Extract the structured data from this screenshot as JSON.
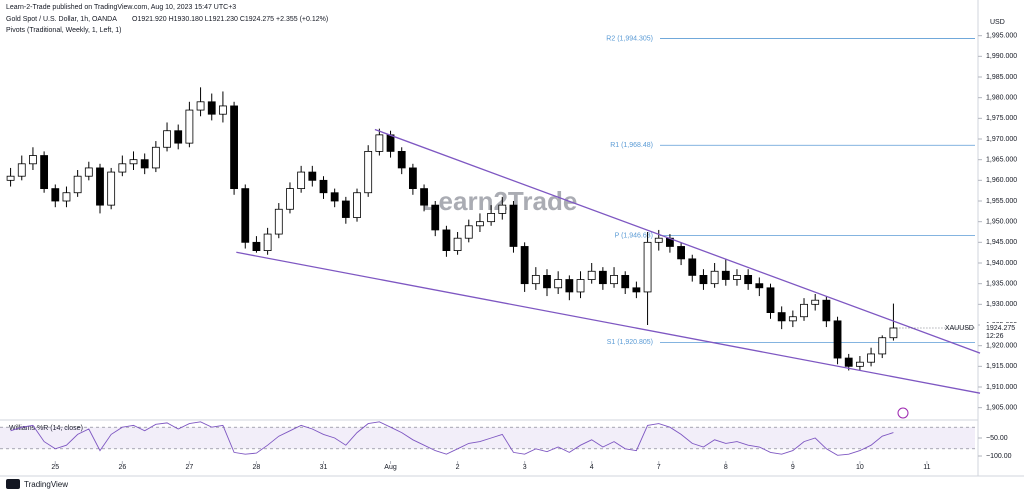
{
  "chart_data": {
    "type": "candlestick",
    "published": "Learn-2-Trade published on TradingView.com, Aug 10, 2023 15:47 UTC+3",
    "title": "Gold Spot / U.S. Dollar, 1h, OANDA",
    "ohlc_summary": "O1921.920 H1930.180 L1921.230 C1924.275 +2.355 (+0.12%)",
    "indicator_title": "Pivots (Traditional, Weekly, 1, Left, 1)",
    "watermark": "Learn2Trade",
    "currency": "USD",
    "symbol": "XAUUSD",
    "countdown": "12:26",
    "footer": "TradingView",
    "up_color": "#ffffff",
    "down_color": "#000000",
    "open": [
      1960,
      1961,
      1964,
      1966,
      1958,
      1955,
      1957,
      1961,
      1963,
      1954,
      1962,
      1964,
      1965,
      1963,
      1968,
      1972,
      1969,
      1977,
      1979,
      1976,
      1978,
      1958,
      1945,
      1943,
      1947,
      1953,
      1958,
      1962,
      1960,
      1957,
      1955,
      1951,
      1957,
      1967,
      1971,
      1967,
      1963,
      1958,
      1954,
      1948,
      1943,
      1946,
      1949,
      1950,
      1952,
      1954,
      1944,
      1935,
      1937,
      1934,
      1936,
      1933,
      1936,
      1938,
      1935,
      1937,
      1934,
      1933,
      1945,
      1946,
      1944,
      1941,
      1937,
      1935,
      1938,
      1936,
      1937,
      1935,
      1934,
      1928,
      1926,
      1927,
      1930,
      1931,
      1926,
      1917,
      1915,
      1916,
      1918,
      1921.92
    ],
    "high": [
      1963,
      1966,
      1968,
      1967,
      1959,
      1958.5,
      1962.5,
      1964.5,
      1964,
      1963,
      1966,
      1967,
      1966.5,
      1969.5,
      1974,
      1973.5,
      1979,
      1982.5,
      1981,
      1981.5,
      1979,
      1959,
      1946.5,
      1948.5,
      1954.5,
      1959.5,
      1963.5,
      1963.5,
      1961,
      1958,
      1956,
      1958,
      1968.5,
      1972.5,
      1972,
      1968,
      1964,
      1959,
      1955,
      1949,
      1947.5,
      1950.5,
      1952,
      1954,
      1956,
      1955,
      1945,
      1939,
      1938.5,
      1938,
      1937,
      1938,
      1940,
      1939,
      1939,
      1938,
      1935.5,
      1947.5,
      1948,
      1947,
      1945,
      1942,
      1938.5,
      1940,
      1941,
      1938.5,
      1938.5,
      1936.5,
      1935,
      1929.5,
      1928.5,
      1931.5,
      1932.5,
      1932,
      1927,
      1918,
      1917.5,
      1919.5,
      1922.5,
      1930.18
    ],
    "low": [
      1958.5,
      1960,
      1962.5,
      1957,
      1953.5,
      1953.5,
      1956,
      1960,
      1952,
      1953,
      1961,
      1962.5,
      1961.5,
      1962,
      1967,
      1967.5,
      1968,
      1975.5,
      1974.5,
      1974,
      1956.5,
      1943.5,
      1942.5,
      1942,
      1946,
      1952,
      1957,
      1958.5,
      1955.5,
      1953.5,
      1949.5,
      1950,
      1956,
      1966,
      1965.5,
      1961.5,
      1956.5,
      1952.5,
      1946.5,
      1941.5,
      1942,
      1945,
      1947.5,
      1949,
      1950.5,
      1942.5,
      1933,
      1933.5,
      1932,
      1932.5,
      1931,
      1931.5,
      1935,
      1933.5,
      1934,
      1932.5,
      1931.5,
      1925,
      1943,
      1942.5,
      1939.5,
      1935.5,
      1933.5,
      1934,
      1934.5,
      1934.5,
      1933.5,
      1932,
      1926.5,
      1924,
      1924.5,
      1926,
      1928.5,
      1924.5,
      1915.5,
      1914,
      1914,
      1915,
      1917,
      1921.23
    ],
    "close": [
      1961,
      1964,
      1966,
      1958,
      1955,
      1957,
      1961,
      1963,
      1954,
      1962,
      1964,
      1965,
      1963,
      1968,
      1972,
      1969,
      1977,
      1979,
      1976,
      1978,
      1958,
      1945,
      1943,
      1947,
      1953,
      1958,
      1962,
      1960,
      1957,
      1955,
      1951,
      1957,
      1967,
      1971,
      1967,
      1963,
      1958,
      1954,
      1948,
      1943,
      1946,
      1949,
      1950,
      1952,
      1954,
      1944,
      1935,
      1937,
      1934,
      1936,
      1933,
      1936,
      1938,
      1935,
      1937,
      1934,
      1933,
      1945,
      1946,
      1944,
      1941,
      1937,
      1935,
      1938,
      1936,
      1937,
      1935,
      1934,
      1928,
      1926,
      1927,
      1930,
      1931,
      1926,
      1917,
      1915,
      1916,
      1918,
      1921.92,
      1924.275
    ],
    "xlim": [
      -0.5,
      86.3
    ],
    "xticks": [
      {
        "value": 4,
        "label": "25"
      },
      {
        "value": 10,
        "label": "26"
      },
      {
        "value": 16,
        "label": "27"
      },
      {
        "value": 22,
        "label": "28"
      },
      {
        "value": 28,
        "label": "31"
      },
      {
        "value": 34,
        "label": "Aug"
      },
      {
        "value": 40,
        "label": "2"
      },
      {
        "value": 46,
        "label": "3"
      },
      {
        "value": 52,
        "label": "4"
      },
      {
        "value": 58,
        "label": "7"
      },
      {
        "value": 64,
        "label": "8"
      },
      {
        "value": 70,
        "label": "9"
      },
      {
        "value": 76,
        "label": "10"
      },
      {
        "value": 82,
        "label": "11"
      }
    ],
    "ylim": [
      1902.5,
      2000
    ],
    "yticks": [
      {
        "value": 1905,
        "label": "1,905.000"
      },
      {
        "value": 1910,
        "label": "1,910.000"
      },
      {
        "value": 1915,
        "label": "1,915.000"
      },
      {
        "value": 1920,
        "label": "1,920.000"
      },
      {
        "value": 1925,
        "label": "1,925.000"
      },
      {
        "value": 1930,
        "label": "1,930.000"
      },
      {
        "value": 1935,
        "label": "1,935.000"
      },
      {
        "value": 1940,
        "label": "1,940.000"
      },
      {
        "value": 1945,
        "label": "1,945.000"
      },
      {
        "value": 1950,
        "label": "1,950.000"
      },
      {
        "value": 1955,
        "label": "1,955.000"
      },
      {
        "value": 1960,
        "label": "1,960.000"
      },
      {
        "value": 1965,
        "label": "1,965.000"
      },
      {
        "value": 1970,
        "label": "1,970.000"
      },
      {
        "value": 1975,
        "label": "1,975.000"
      },
      {
        "value": 1980,
        "label": "1,980.000"
      },
      {
        "value": 1985,
        "label": "1,985.000"
      },
      {
        "value": 1990,
        "label": "1,990.000"
      },
      {
        "value": 1995,
        "label": "1,995.000"
      }
    ],
    "pivots": [
      {
        "label": "R2 (1,994.305)",
        "value": 1994.305
      },
      {
        "label": "R1 (1,968.48)",
        "value": 1968.48
      },
      {
        "label": "P (1,946.63)",
        "value": 1946.63
      },
      {
        "label": "S1 (1,920.805)",
        "value": 1920.805
      }
    ],
    "pivot_color": "#5b9bd5",
    "trendlines": [
      {
        "color": "#7e57c2",
        "x": [
          32.6,
          86.75
        ],
        "y": [
          1972.3,
          1918.2
        ]
      },
      {
        "color": "#7e57c2",
        "x": [
          20.2,
          86.75
        ],
        "y": [
          1942.6,
          1908.5
        ]
      }
    ],
    "oscillator": {
      "name": "Williams %R (14, close)",
      "color": "#7e57c2",
      "ylim": [
        -115,
        0
      ],
      "yticks": [
        {
          "value": -50,
          "label": "−50.00"
        },
        {
          "value": -100,
          "label": "−100.00"
        }
      ],
      "levels": [
        -20,
        -80
      ],
      "values": [
        -30,
        -20,
        -15,
        -60,
        -80,
        -70,
        -40,
        -25,
        -85,
        -40,
        -20,
        -15,
        -30,
        -12,
        -8,
        -25,
        -10,
        -5,
        -20,
        -15,
        -90,
        -95,
        -92,
        -70,
        -45,
        -30,
        -15,
        -25,
        -40,
        -50,
        -70,
        -35,
        -10,
        -5,
        -20,
        -35,
        -55,
        -70,
        -85,
        -95,
        -80,
        -65,
        -60,
        -50,
        -40,
        -90,
        -95,
        -80,
        -88,
        -75,
        -90,
        -70,
        -55,
        -75,
        -60,
        -80,
        -85,
        -15,
        -10,
        -20,
        -40,
        -65,
        -75,
        -55,
        -65,
        -60,
        -70,
        -75,
        -90,
        -95,
        -85,
        -60,
        -50,
        -80,
        -98,
        -95,
        -85,
        -70,
        -45,
        -35
      ]
    }
  }
}
